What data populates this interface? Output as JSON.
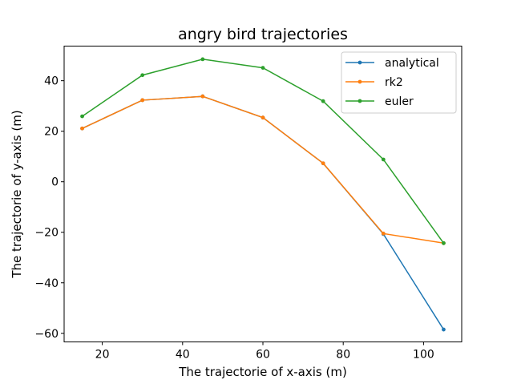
{
  "chart_data": {
    "type": "line",
    "title": "angry bird trajectories",
    "xlabel": "The trajectorie of x-axis (m)",
    "ylabel": "The trajectorie of y-axis (m)",
    "xlim": [
      10.5,
      109.5
    ],
    "ylim": [
      -63.4,
      53.7
    ],
    "xticks": [
      20,
      40,
      60,
      80,
      100
    ],
    "yticks": [
      -60,
      -40,
      -20,
      0,
      20,
      40
    ],
    "legend_position": "top-right",
    "grid": false,
    "x": [
      15,
      30,
      45,
      60,
      75,
      90,
      105
    ],
    "series": [
      {
        "name": "analytical",
        "color": "#1f77b4",
        "values": [
          21.1,
          32.3,
          33.8,
          25.4,
          7.3,
          -20.7,
          -58.5
        ]
      },
      {
        "name": "rk2",
        "color": "#ff7f0e",
        "values": [
          21.1,
          32.3,
          33.8,
          25.4,
          7.3,
          -20.5,
          -24.3
        ]
      },
      {
        "name": "euler",
        "color": "#2ca02c",
        "values": [
          25.9,
          42.2,
          48.5,
          45.1,
          31.9,
          8.8,
          -24.3
        ]
      }
    ]
  }
}
